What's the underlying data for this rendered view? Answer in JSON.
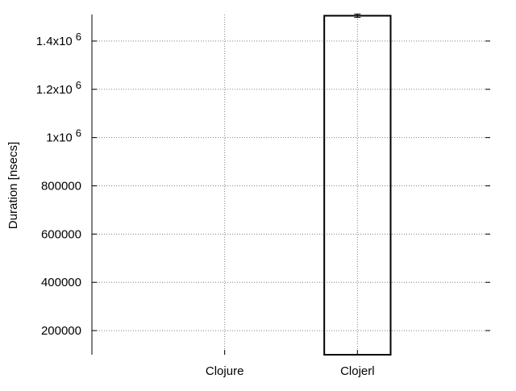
{
  "chart_data": {
    "type": "bar",
    "categories": [
      "Clojure",
      "Clojerl"
    ],
    "series": [
      {
        "values": [
          null,
          1505000
        ],
        "error_low": [
          null,
          1498000
        ],
        "error_high": [
          null,
          1512000
        ]
      }
    ],
    "ylabel": "Duration [nsecs]",
    "xlabel": "",
    "title": "",
    "ylim": [
      100000,
      1510000
    ],
    "yticks": [
      {
        "value": 200000,
        "label": "200000"
      },
      {
        "value": 400000,
        "label": "400000"
      },
      {
        "value": 600000,
        "label": "600000"
      },
      {
        "value": 800000,
        "label": "800000"
      },
      {
        "value": 1000000,
        "label": "1x10",
        "exp": "6"
      },
      {
        "value": 1200000,
        "label": "1.2x10",
        "exp": "6"
      },
      {
        "value": 1400000,
        "label": "1.4x10",
        "exp": "6"
      }
    ],
    "grid": true,
    "grid_style": "dotted",
    "bar_color": "#000000",
    "grid_color": "#808080"
  }
}
